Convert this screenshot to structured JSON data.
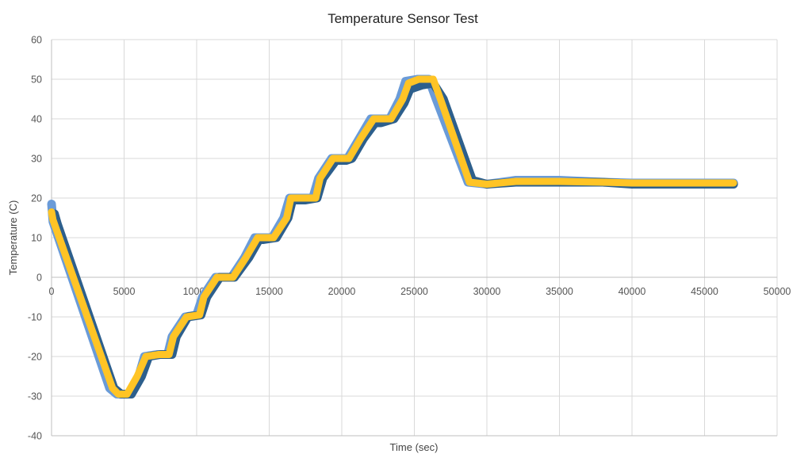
{
  "chart_data": {
    "type": "line",
    "title": "Temperature Sensor Test",
    "xlabel": "Time (sec)",
    "ylabel": "Temperature (C)",
    "xlim": [
      0,
      50000
    ],
    "ylim": [
      -40,
      60
    ],
    "x_ticks": [
      0,
      5000,
      10000,
      15000,
      20000,
      25000,
      30000,
      35000,
      40000,
      45000,
      50000
    ],
    "y_ticks": [
      -40,
      -30,
      -20,
      -10,
      0,
      10,
      20,
      30,
      40,
      50,
      60
    ],
    "grid": true,
    "legend": "none",
    "series": [
      {
        "color": "#6a9bd8",
        "width": 11,
        "x": [
          0,
          100,
          4000,
          4500,
          5300,
          6000,
          6400,
          7300,
          8000,
          8300,
          9200,
          10000,
          10400,
          11300,
          12000,
          12400,
          13300,
          14000,
          14300,
          15200,
          16000,
          16400,
          17200,
          18000,
          18400,
          19300,
          20000,
          20400,
          21200,
          22000,
          22400,
          23300,
          24000,
          24400,
          25200,
          26000,
          26500,
          28700,
          30000,
          32000,
          35000,
          38000,
          40000,
          45000,
          47000
        ],
        "y": [
          18.5,
          14,
          -28,
          -29.5,
          -29.5,
          -25,
          -20,
          -19.5,
          -19.5,
          -15,
          -10,
          -9.5,
          -5,
          0,
          0,
          0,
          5,
          10,
          10,
          10,
          15,
          20,
          20,
          20,
          25,
          30,
          30,
          30,
          35,
          40,
          40,
          40,
          45,
          49.5,
          50,
          50,
          45,
          24,
          23.5,
          24.5,
          24.5,
          24,
          23.8,
          23.8,
          23.8
        ]
      },
      {
        "color": "#2d5f8c",
        "width": 11,
        "x": [
          200,
          400,
          4300,
          4800,
          5500,
          6200,
          6700,
          7500,
          8300,
          8600,
          9400,
          10300,
          10700,
          11600,
          12300,
          12600,
          13600,
          14300,
          14600,
          15500,
          16300,
          16600,
          17500,
          18300,
          18700,
          19600,
          20300,
          20700,
          21500,
          22300,
          22700,
          23600,
          24300,
          24700,
          25500,
          26300,
          27000,
          29000,
          30000,
          32000,
          35000,
          38000,
          40000,
          45000,
          47000
        ],
        "y": [
          16,
          13.5,
          -28,
          -29.5,
          -29.5,
          -25,
          -20,
          -19.5,
          -19.5,
          -15,
          -10,
          -9.5,
          -5,
          0,
          0,
          0,
          5,
          9.5,
          9.5,
          10,
          15,
          19.5,
          19.5,
          20,
          25,
          29.5,
          29.5,
          30,
          35,
          39,
          39,
          40,
          44,
          47.5,
          48.5,
          49,
          45,
          24.5,
          23.5,
          24,
          24,
          24,
          23.5,
          23.5,
          23.5
        ]
      },
      {
        "color": "#ffc425",
        "width": 9,
        "x": [
          0,
          100,
          4200,
          4600,
          5200,
          5900,
          6500,
          7400,
          8100,
          8400,
          9300,
          10200,
          10500,
          11400,
          12200,
          12500,
          13400,
          14200,
          14400,
          15300,
          16200,
          16500,
          17300,
          18200,
          18500,
          19400,
          20200,
          20500,
          21300,
          22200,
          22500,
          23400,
          24200,
          24600,
          25300,
          26300,
          26800,
          28800,
          30000,
          32000,
          35000,
          38000,
          40000,
          45000,
          47000
        ],
        "y": [
          16.5,
          14.5,
          -28,
          -29.5,
          -29.5,
          -25,
          -20,
          -19.5,
          -19.5,
          -15,
          -10,
          -9.5,
          -5,
          0,
          0,
          0,
          5,
          10,
          10,
          10,
          15,
          20,
          20,
          20,
          25,
          30,
          30,
          30,
          35,
          40,
          40,
          40,
          45,
          49,
          50,
          50,
          45,
          24,
          23.5,
          24.2,
          24.2,
          24,
          23.8,
          23.8,
          23.8
        ]
      }
    ]
  }
}
